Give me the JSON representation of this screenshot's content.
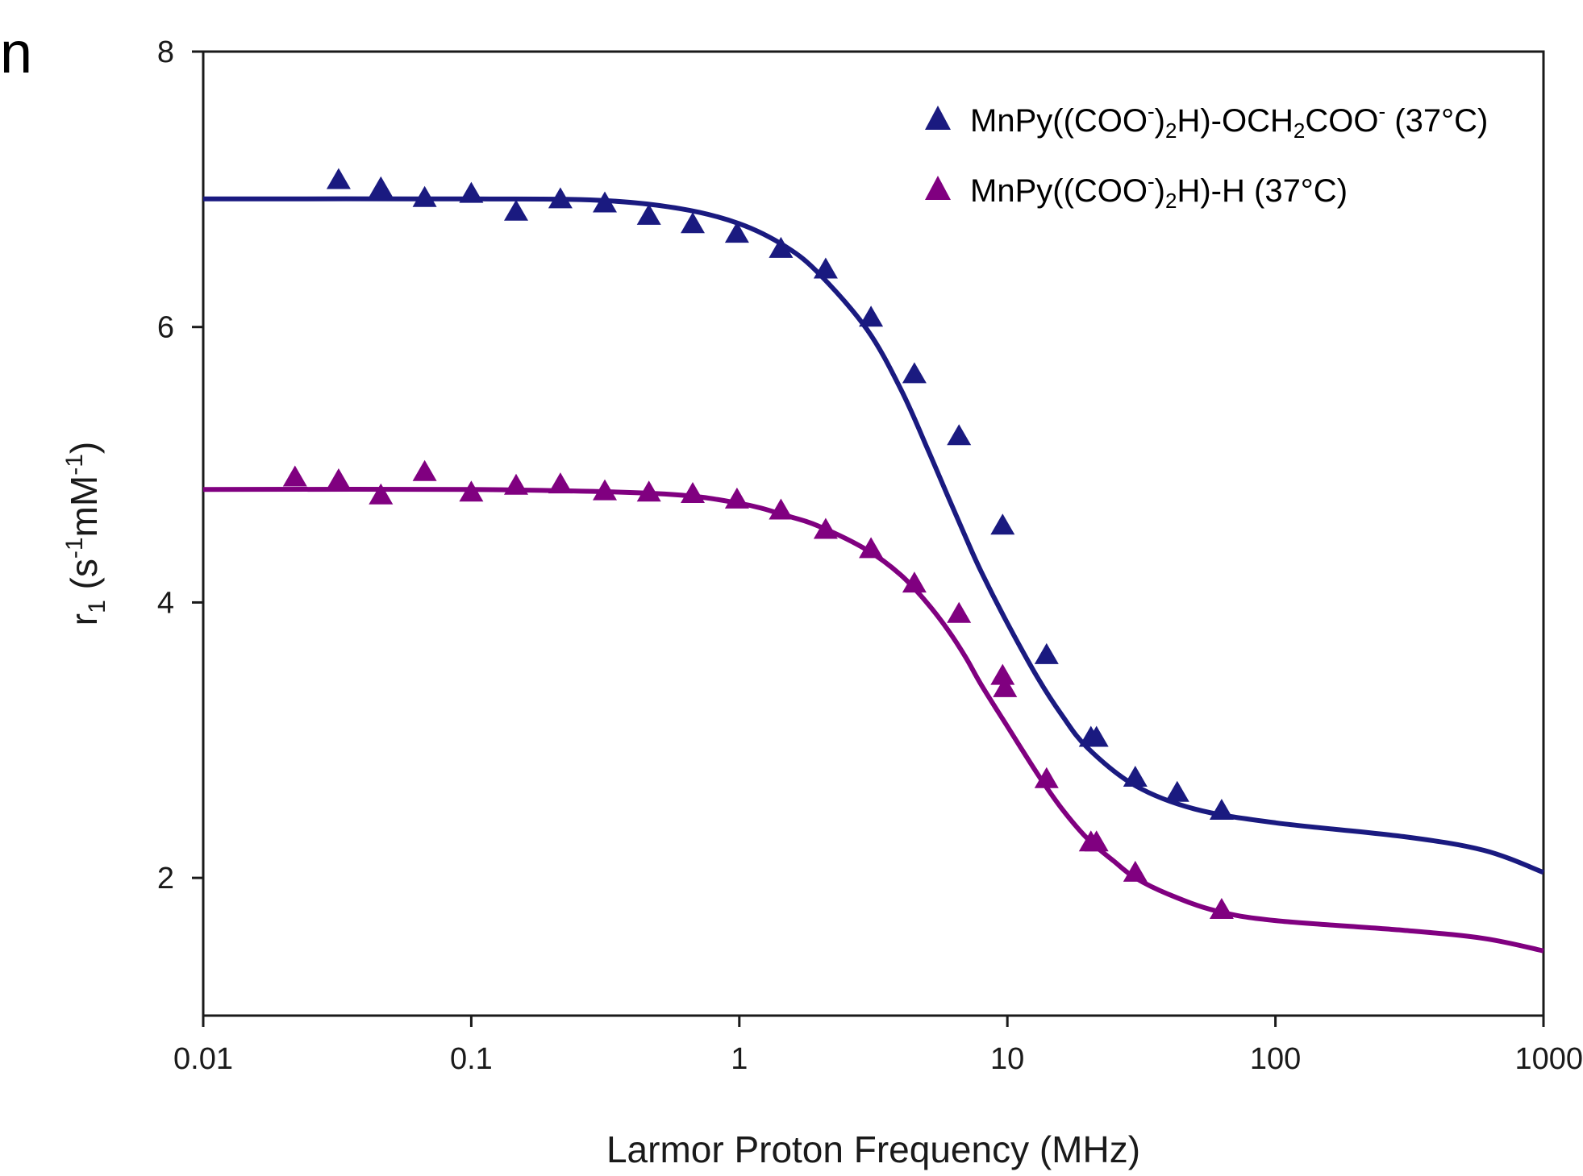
{
  "panel_label": "n",
  "chart_data": {
    "type": "scatter",
    "xlabel": "Larmor Proton Frequency (MHz)",
    "ylabel": {
      "r": "r",
      "sub1": "1",
      "open": " (s",
      "sup1": "-1",
      "mid": "mM",
      "sup2": "-1",
      "close": ")"
    },
    "xscale": "log",
    "xlim": [
      0.01,
      1000
    ],
    "ylim": [
      1,
      8
    ],
    "x_ticks": [
      0.01,
      0.1,
      1,
      10,
      100,
      1000
    ],
    "x_tick_labels": [
      "0.01",
      "0.1",
      "1",
      "10",
      "100",
      "1000"
    ],
    "y_ticks": [
      2,
      4,
      6,
      8
    ],
    "y_tick_labels": [
      "2",
      "4",
      "6",
      "8"
    ],
    "grid": false,
    "legend_position": "top-right",
    "series": [
      {
        "name": "MnPy((COO-)2H)-OCH2COO- (37°C)",
        "legend": {
          "a": "MnPy((COO",
          "sup1": "-",
          "b": ")",
          "sub1": "2",
          "c": "H)-OCH",
          "sub2": "2",
          "d": "COO",
          "sup2": "-",
          "e": " (37°C)"
        },
        "color": "#1a1a80",
        "points": [
          [
            0.032,
            7.06
          ],
          [
            0.046,
            7.0
          ],
          [
            0.067,
            6.93
          ],
          [
            0.1,
            6.96
          ],
          [
            0.147,
            6.83
          ],
          [
            0.215,
            6.92
          ],
          [
            0.315,
            6.89
          ],
          [
            0.46,
            6.8
          ],
          [
            0.67,
            6.74
          ],
          [
            0.98,
            6.67
          ],
          [
            1.43,
            6.56
          ],
          [
            2.1,
            6.41
          ],
          [
            3.1,
            6.06
          ],
          [
            4.5,
            5.65
          ],
          [
            6.6,
            5.2
          ],
          [
            9.6,
            4.55
          ],
          [
            14,
            3.61
          ],
          [
            20.5,
            3.01
          ],
          [
            21.5,
            3.01
          ],
          [
            30,
            2.72
          ],
          [
            43,
            2.61
          ],
          [
            63,
            2.48
          ]
        ],
        "fit": [
          [
            0.01,
            6.93
          ],
          [
            0.1,
            6.93
          ],
          [
            0.3,
            6.92
          ],
          [
            0.6,
            6.86
          ],
          [
            1,
            6.75
          ],
          [
            1.5,
            6.58
          ],
          [
            2,
            6.38
          ],
          [
            3,
            5.98
          ],
          [
            4,
            5.55
          ],
          [
            5,
            5.13
          ],
          [
            6,
            4.77
          ],
          [
            7,
            4.47
          ],
          [
            8,
            4.22
          ],
          [
            10,
            3.85
          ],
          [
            13,
            3.45
          ],
          [
            16,
            3.18
          ],
          [
            20,
            2.94
          ],
          [
            30,
            2.67
          ],
          [
            50,
            2.5
          ],
          [
            100,
            2.4
          ],
          [
            300,
            2.3
          ],
          [
            600,
            2.2
          ],
          [
            1000,
            2.04
          ]
        ]
      },
      {
        "name": "MnPy((COO-)2H)-H (37°C)",
        "legend": {
          "a": "MnPy((COO",
          "sup1": "-",
          "b": ")",
          "sub1": "2",
          "c": "H)-H (37°C)"
        },
        "color": "#800080",
        "points": [
          [
            0.022,
            4.9
          ],
          [
            0.032,
            4.88
          ],
          [
            0.046,
            4.77
          ],
          [
            0.067,
            4.94
          ],
          [
            0.1,
            4.79
          ],
          [
            0.147,
            4.84
          ],
          [
            0.215,
            4.85
          ],
          [
            0.315,
            4.8
          ],
          [
            0.46,
            4.79
          ],
          [
            0.67,
            4.78
          ],
          [
            0.98,
            4.74
          ],
          [
            1.43,
            4.66
          ],
          [
            2.1,
            4.52
          ],
          [
            3.1,
            4.38
          ],
          [
            4.5,
            4.13
          ],
          [
            6.6,
            3.91
          ],
          [
            9.6,
            3.46
          ],
          [
            9.8,
            3.37
          ],
          [
            14,
            2.71
          ],
          [
            20.5,
            2.25
          ],
          [
            21.5,
            2.25
          ],
          [
            30,
            2.03
          ],
          [
            63,
            1.76
          ]
        ],
        "fit": [
          [
            0.01,
            4.82
          ],
          [
            0.1,
            4.82
          ],
          [
            0.5,
            4.79
          ],
          [
            1,
            4.72
          ],
          [
            1.5,
            4.63
          ],
          [
            2,
            4.55
          ],
          [
            3,
            4.38
          ],
          [
            4,
            4.2
          ],
          [
            5,
            4.0
          ],
          [
            6,
            3.8
          ],
          [
            7,
            3.6
          ],
          [
            8,
            3.4
          ],
          [
            10,
            3.1
          ],
          [
            13,
            2.75
          ],
          [
            16,
            2.5
          ],
          [
            20,
            2.28
          ],
          [
            25,
            2.12
          ],
          [
            30,
            2.0
          ],
          [
            40,
            1.88
          ],
          [
            60,
            1.76
          ],
          [
            100,
            1.69
          ],
          [
            300,
            1.62
          ],
          [
            600,
            1.56
          ],
          [
            1000,
            1.47
          ]
        ]
      }
    ]
  }
}
